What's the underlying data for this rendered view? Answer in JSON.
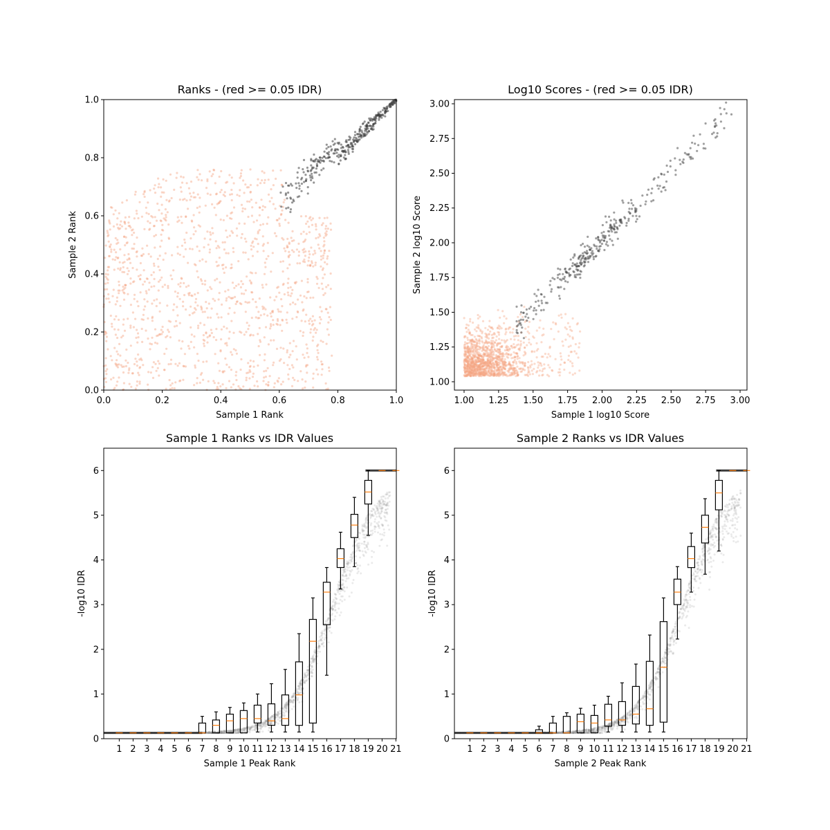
{
  "chart_data": [
    {
      "type": "scatter",
      "title": "Ranks - (red >= 0.05 IDR)",
      "xlabel": "Sample 1 Rank",
      "ylabel": "Sample 2 Rank",
      "xlim": [
        0,
        1
      ],
      "ylim": [
        0,
        1
      ],
      "xticks": [
        "0.0",
        "0.2",
        "0.4",
        "0.6",
        "0.8",
        "1.0"
      ],
      "yticks": [
        "0.0",
        "0.2",
        "0.4",
        "0.6",
        "0.8",
        "1.0"
      ],
      "grid": false,
      "colors": {
        "above_threshold": "#f4a582",
        "below_threshold": "#404040"
      },
      "series": [
        {
          "color": "above_threshold",
          "approx_points": 1300,
          "x": [
            0.0,
            0.02,
            0.05,
            0.1,
            0.15,
            0.2,
            0.3,
            0.4,
            0.5,
            0.6,
            0.7,
            0.75
          ],
          "y": [
            0.3,
            0.6,
            0.02,
            0.45,
            0.15,
            0.7,
            0.25,
            0.55,
            0.1,
            0.65,
            0.4,
            0.2
          ]
        },
        {
          "color": "below_threshold",
          "approx_points": 350,
          "x": [
            0.6,
            0.65,
            0.7,
            0.75,
            0.8,
            0.85,
            0.9,
            0.95,
            1.0
          ],
          "y": [
            0.62,
            0.68,
            0.7,
            0.74,
            0.79,
            0.84,
            0.89,
            0.95,
            1.0
          ]
        }
      ]
    },
    {
      "type": "scatter",
      "title": "Log10 Scores - (red >= 0.05 IDR)",
      "xlabel": "Sample 1 log10 Score",
      "ylabel": "Sample 2 log10 Score",
      "xlim": [
        0.93,
        3.05
      ],
      "ylim": [
        0.94,
        3.03
      ],
      "xticks": [
        "1.00",
        "1.25",
        "1.50",
        "1.75",
        "2.00",
        "2.25",
        "2.50",
        "2.75",
        "3.00"
      ],
      "yticks": [
        "1.00",
        "1.25",
        "1.50",
        "1.75",
        "2.00",
        "2.25",
        "2.50",
        "2.75",
        "3.00"
      ],
      "grid": false,
      "series": [
        {
          "color": "above_threshold",
          "approx_points": 1300,
          "x": [
            1.0,
            1.05,
            1.1,
            1.2,
            1.3,
            1.4,
            1.5,
            1.6,
            1.7,
            1.8
          ],
          "y": [
            1.04,
            1.1,
            1.2,
            1.15,
            1.3,
            1.25,
            1.35,
            1.2,
            1.1,
            1.05
          ]
        },
        {
          "color": "below_threshold",
          "approx_points": 350,
          "x": [
            1.4,
            1.5,
            1.6,
            1.75,
            1.9,
            2.0,
            2.1,
            2.25,
            2.5,
            2.75,
            2.95
          ],
          "y": [
            1.45,
            1.52,
            1.6,
            1.75,
            1.95,
            2.02,
            2.1,
            2.25,
            2.48,
            2.72,
            2.95
          ]
        }
      ]
    },
    {
      "type": "box",
      "title": "Sample 1 Ranks vs IDR Values",
      "xlabel": "Sample 1 Peak Rank",
      "ylabel": "-log10 IDR",
      "ylim": [
        0,
        6.5
      ],
      "categories": [
        "1",
        "2",
        "3",
        "4",
        "5",
        "6",
        "7",
        "8",
        "9",
        "10",
        "11",
        "12",
        "13",
        "14",
        "15",
        "16",
        "17",
        "18",
        "19",
        "20",
        "21"
      ],
      "yticks": [
        "0",
        "1",
        "2",
        "3",
        "4",
        "5",
        "6"
      ],
      "grid": false,
      "boxes": [
        {
          "cat": 1,
          "whislo": 0.13,
          "q1": 0.13,
          "med": 0.13,
          "q3": 0.13,
          "whishi": 0.13
        },
        {
          "cat": 2,
          "whislo": 0.13,
          "q1": 0.13,
          "med": 0.13,
          "q3": 0.13,
          "whishi": 0.13
        },
        {
          "cat": 3,
          "whislo": 0.13,
          "q1": 0.13,
          "med": 0.13,
          "q3": 0.13,
          "whishi": 0.13
        },
        {
          "cat": 4,
          "whislo": 0.13,
          "q1": 0.13,
          "med": 0.13,
          "q3": 0.13,
          "whishi": 0.13
        },
        {
          "cat": 5,
          "whislo": 0.13,
          "q1": 0.13,
          "med": 0.13,
          "q3": 0.13,
          "whishi": 0.13
        },
        {
          "cat": 6,
          "whislo": 0.13,
          "q1": 0.13,
          "med": 0.13,
          "q3": 0.13,
          "whishi": 0.13
        },
        {
          "cat": 7,
          "whislo": 0.13,
          "q1": 0.13,
          "med": 0.13,
          "q3": 0.35,
          "whishi": 0.5
        },
        {
          "cat": 8,
          "whislo": 0.13,
          "q1": 0.13,
          "med": 0.3,
          "q3": 0.42,
          "whishi": 0.6
        },
        {
          "cat": 9,
          "whislo": 0.13,
          "q1": 0.13,
          "med": 0.4,
          "q3": 0.55,
          "whishi": 0.7
        },
        {
          "cat": 10,
          "whislo": 0.13,
          "q1": 0.13,
          "med": 0.45,
          "q3": 0.63,
          "whishi": 0.8
        },
        {
          "cat": 11,
          "whislo": 0.15,
          "q1": 0.35,
          "med": 0.45,
          "q3": 0.75,
          "whishi": 1.0
        },
        {
          "cat": 12,
          "whislo": 0.15,
          "q1": 0.3,
          "med": 0.4,
          "q3": 0.78,
          "whishi": 1.23
        },
        {
          "cat": 13,
          "whislo": 0.15,
          "q1": 0.3,
          "med": 0.45,
          "q3": 0.98,
          "whishi": 1.55
        },
        {
          "cat": 14,
          "whislo": 0.15,
          "q1": 0.3,
          "med": 0.98,
          "q3": 1.72,
          "whishi": 2.35
        },
        {
          "cat": 15,
          "whislo": 0.15,
          "q1": 0.35,
          "med": 2.18,
          "q3": 2.67,
          "whishi": 3.15
        },
        {
          "cat": 16,
          "whislo": 1.42,
          "q1": 2.55,
          "med": 3.28,
          "q3": 3.5,
          "whishi": 3.83
        },
        {
          "cat": 17,
          "whislo": 3.35,
          "q1": 3.83,
          "med": 4.03,
          "q3": 4.25,
          "whishi": 4.62
        },
        {
          "cat": 18,
          "whislo": 3.85,
          "q1": 4.5,
          "med": 4.78,
          "q3": 5.02,
          "whishi": 5.4
        },
        {
          "cat": 19,
          "whislo": 4.55,
          "q1": 5.25,
          "med": 5.52,
          "q3": 5.78,
          "whishi": 6.0
        },
        {
          "cat": 20,
          "whislo": 6.0,
          "q1": 6.0,
          "med": 6.0,
          "q3": 6.0,
          "whishi": 6.0
        },
        {
          "cat": 21,
          "whislo": 6.0,
          "q1": 6.0,
          "med": 6.0,
          "q3": 6.0,
          "whishi": 6.0
        }
      ]
    },
    {
      "type": "box",
      "title": "Sample 2 Ranks vs IDR Values",
      "xlabel": "Sample 2 Peak Rank",
      "ylabel": "-log10 IDR",
      "ylim": [
        0,
        6.5
      ],
      "categories": [
        "1",
        "2",
        "3",
        "4",
        "5",
        "6",
        "7",
        "8",
        "9",
        "10",
        "11",
        "12",
        "13",
        "14",
        "15",
        "16",
        "17",
        "18",
        "19",
        "20",
        "21"
      ],
      "yticks": [
        "0",
        "1",
        "2",
        "3",
        "4",
        "5",
        "6"
      ],
      "grid": false,
      "boxes": [
        {
          "cat": 1,
          "whislo": 0.13,
          "q1": 0.13,
          "med": 0.13,
          "q3": 0.13,
          "whishi": 0.13
        },
        {
          "cat": 2,
          "whislo": 0.13,
          "q1": 0.13,
          "med": 0.13,
          "q3": 0.13,
          "whishi": 0.13
        },
        {
          "cat": 3,
          "whislo": 0.13,
          "q1": 0.13,
          "med": 0.13,
          "q3": 0.13,
          "whishi": 0.13
        },
        {
          "cat": 4,
          "whislo": 0.13,
          "q1": 0.13,
          "med": 0.13,
          "q3": 0.13,
          "whishi": 0.13
        },
        {
          "cat": 5,
          "whislo": 0.13,
          "q1": 0.13,
          "med": 0.13,
          "q3": 0.13,
          "whishi": 0.13
        },
        {
          "cat": 6,
          "whislo": 0.13,
          "q1": 0.13,
          "med": 0.13,
          "q3": 0.2,
          "whishi": 0.28
        },
        {
          "cat": 7,
          "whislo": 0.13,
          "q1": 0.13,
          "med": 0.13,
          "q3": 0.35,
          "whishi": 0.5
        },
        {
          "cat": 8,
          "whislo": 0.13,
          "q1": 0.13,
          "med": 0.13,
          "q3": 0.5,
          "whishi": 0.58
        },
        {
          "cat": 9,
          "whislo": 0.13,
          "q1": 0.13,
          "med": 0.38,
          "q3": 0.55,
          "whishi": 0.68
        },
        {
          "cat": 10,
          "whislo": 0.13,
          "q1": 0.13,
          "med": 0.35,
          "q3": 0.52,
          "whishi": 0.75
        },
        {
          "cat": 11,
          "whislo": 0.15,
          "q1": 0.28,
          "med": 0.42,
          "q3": 0.77,
          "whishi": 0.95
        },
        {
          "cat": 12,
          "whislo": 0.15,
          "q1": 0.3,
          "med": 0.42,
          "q3": 0.83,
          "whishi": 1.25
        },
        {
          "cat": 13,
          "whislo": 0.15,
          "q1": 0.33,
          "med": 0.55,
          "q3": 1.17,
          "whishi": 1.67
        },
        {
          "cat": 14,
          "whislo": 0.15,
          "q1": 0.3,
          "med": 0.67,
          "q3": 1.73,
          "whishi": 2.32
        },
        {
          "cat": 15,
          "whislo": 0.15,
          "q1": 0.37,
          "med": 1.6,
          "q3": 2.62,
          "whishi": 3.15
        },
        {
          "cat": 16,
          "whislo": 2.23,
          "q1": 3.0,
          "med": 3.28,
          "q3": 3.57,
          "whishi": 3.85
        },
        {
          "cat": 17,
          "whislo": 3.28,
          "q1": 3.83,
          "med": 4.03,
          "q3": 4.3,
          "whishi": 4.6
        },
        {
          "cat": 18,
          "whislo": 3.68,
          "q1": 4.38,
          "med": 4.73,
          "q3": 5.0,
          "whishi": 5.37
        },
        {
          "cat": 19,
          "whislo": 4.2,
          "q1": 5.12,
          "med": 5.5,
          "q3": 5.78,
          "whishi": 6.0
        },
        {
          "cat": 20,
          "whislo": 6.0,
          "q1": 6.0,
          "med": 6.0,
          "q3": 6.0,
          "whishi": 6.0
        },
        {
          "cat": 21,
          "whislo": 6.0,
          "q1": 6.0,
          "med": 6.0,
          "q3": 6.0,
          "whishi": 6.0
        }
      ]
    }
  ]
}
